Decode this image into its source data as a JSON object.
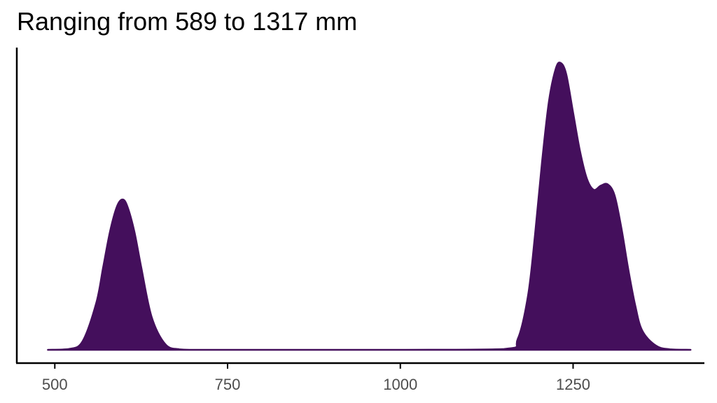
{
  "chart_data": {
    "type": "area",
    "title": "Ranging from 589 to 1317 mm",
    "xlabel": "",
    "ylabel": "",
    "xlim": [
      445,
      1440
    ],
    "ylim": [
      0,
      1
    ],
    "x_ticks": [
      500,
      750,
      1000,
      1250
    ],
    "x_tick_labels": [
      "500",
      "750",
      "1000",
      "1250"
    ],
    "grid": false,
    "legend": "none",
    "fill_color": "#440f5c",
    "series": [
      {
        "x": [
          490,
          520,
          540,
          560,
          570,
          580,
          590,
          598,
          605,
          615,
          625,
          640,
          660,
          680,
          700,
          750,
          1000,
          1150,
          1170,
          1185,
          1195,
          1205,
          1215,
          1225,
          1232,
          1240,
          1250,
          1260,
          1270,
          1280,
          1290,
          1300,
          1310,
          1320,
          1330,
          1340,
          1350,
          1370,
          1390,
          1420
        ],
        "y": [
          0.0,
          0.003,
          0.03,
          0.17,
          0.3,
          0.43,
          0.52,
          0.545,
          0.52,
          0.43,
          0.3,
          0.12,
          0.02,
          0.002,
          0.0,
          0.0,
          0.0,
          0.003,
          0.04,
          0.2,
          0.42,
          0.68,
          0.9,
          1.02,
          1.04,
          1.0,
          0.86,
          0.72,
          0.62,
          0.58,
          0.595,
          0.6,
          0.56,
          0.44,
          0.29,
          0.16,
          0.07,
          0.015,
          0.002,
          0.0
        ]
      }
    ]
  }
}
